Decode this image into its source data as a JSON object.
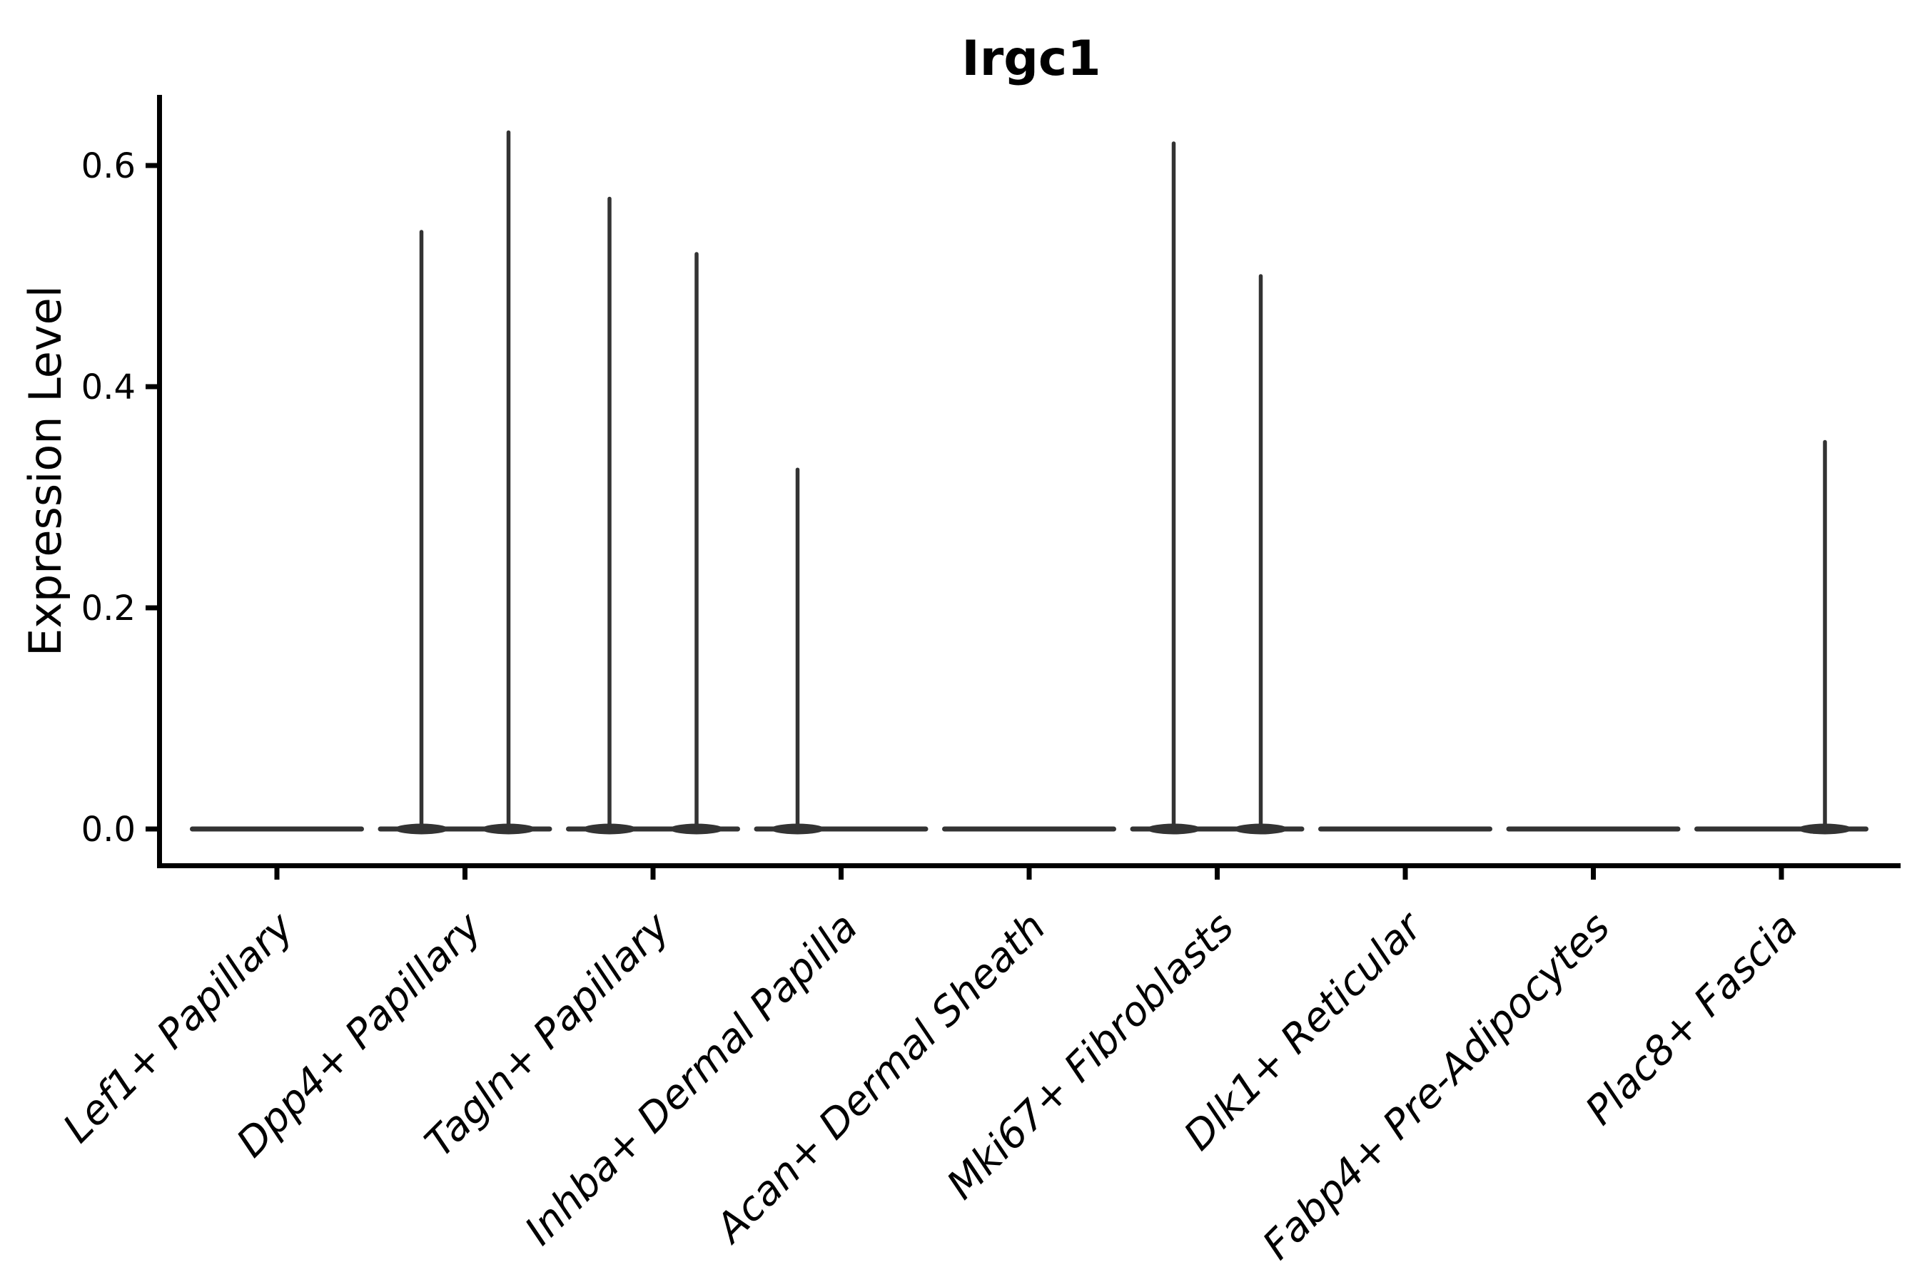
{
  "figure": {
    "title": "Irgc1",
    "y_axis_label": "Expression Level",
    "legend": null
  },
  "style": {
    "violin_color": "#333333",
    "axis_color": "#000000",
    "text_color": "#000000",
    "background_color": "#ffffff"
  },
  "chart_data": {
    "type": "violin",
    "title": "Irgc1",
    "xlabel": "",
    "ylabel": "Expression Level",
    "yticks": [
      0.0,
      0.2,
      0.4,
      0.6
    ],
    "ytick_labels": [
      "0.0",
      "0.2",
      "0.4",
      "0.6"
    ],
    "ylim": [
      -0.031,
      0.664
    ],
    "grid": false,
    "legend_position": "none",
    "x_tick_label_rotation_deg": 45,
    "x_tick_label_style": "italic",
    "categories": [
      "Lef1+ Papillary",
      "Dpp4+ Papillary",
      "Tagln+ Papillary",
      "Inhba+ Dermal Papilla",
      "Acan+ Dermal Sheath",
      "Mki67+ Fibroblasts",
      "Dlk1+ Reticular",
      "Fabp4+ Pre-Adipocytes",
      "Plac8+ Fascia"
    ],
    "violins_per_category": 2,
    "baseline_value": 0.0,
    "description": "Each category shows two side-by-side violins collapsed to a flat band at expression 0; a thin vertical spike marks the maximum expression of the few expressing cells (0 = no spike, all cells at zero).",
    "series": [
      {
        "name": "left-violin",
        "max_expression": [
          0,
          0.54,
          0.57,
          0.325,
          0,
          0.62,
          0,
          0,
          0
        ]
      },
      {
        "name": "right-violin",
        "max_expression": [
          0,
          0.63,
          0.52,
          0,
          0,
          0.5,
          0,
          0,
          0.35
        ]
      }
    ]
  }
}
